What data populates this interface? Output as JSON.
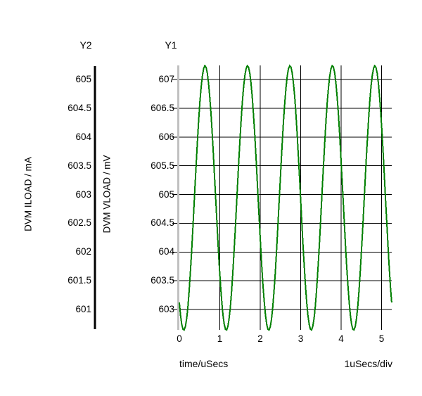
{
  "colors": {
    "background": "#ffffff",
    "text": "#000000",
    "grid": "#000000",
    "trace": "#008000",
    "y1_axis_line": "#c0c0c0",
    "y2_axis_line": "#000000"
  },
  "chart_data": {
    "type": "line",
    "grid": true,
    "x_axis": {
      "label": "time/uSecs",
      "units_per_div": "1uSecs/div",
      "ticks": [
        0,
        1,
        2,
        3,
        4,
        5
      ],
      "range": [
        0,
        5.25
      ]
    },
    "y1_axis": {
      "title": "Y1",
      "label": "DVM VLOAD / mV",
      "ticks": [
        607,
        606.5,
        606,
        605.5,
        605,
        604.5,
        604,
        603.5,
        603
      ],
      "range": [
        602.64,
        607.25
      ]
    },
    "y2_axis": {
      "title": "Y2",
      "label": "DVM ILOAD / mA",
      "ticks": [
        605,
        604.5,
        604,
        603.5,
        603,
        602.5,
        602,
        601.5,
        601
      ],
      "range": [
        600.64,
        605.25
      ]
    },
    "series": [
      {
        "name": "DVM VLOAD",
        "axis": "Y1",
        "color": "#008000",
        "shape": "sine",
        "offset": 604.94,
        "amplitude": 2.3,
        "period": 1.05,
        "trough_time": 0.11,
        "t_start": 0,
        "t_end": 5.25,
        "max": 607.24,
        "min": 602.64,
        "peak_times": [
          0.64,
          1.69,
          2.74,
          3.79,
          4.84
        ],
        "trough_times": [
          0.11,
          1.16,
          2.21,
          3.26,
          4.31
        ]
      }
    ]
  }
}
